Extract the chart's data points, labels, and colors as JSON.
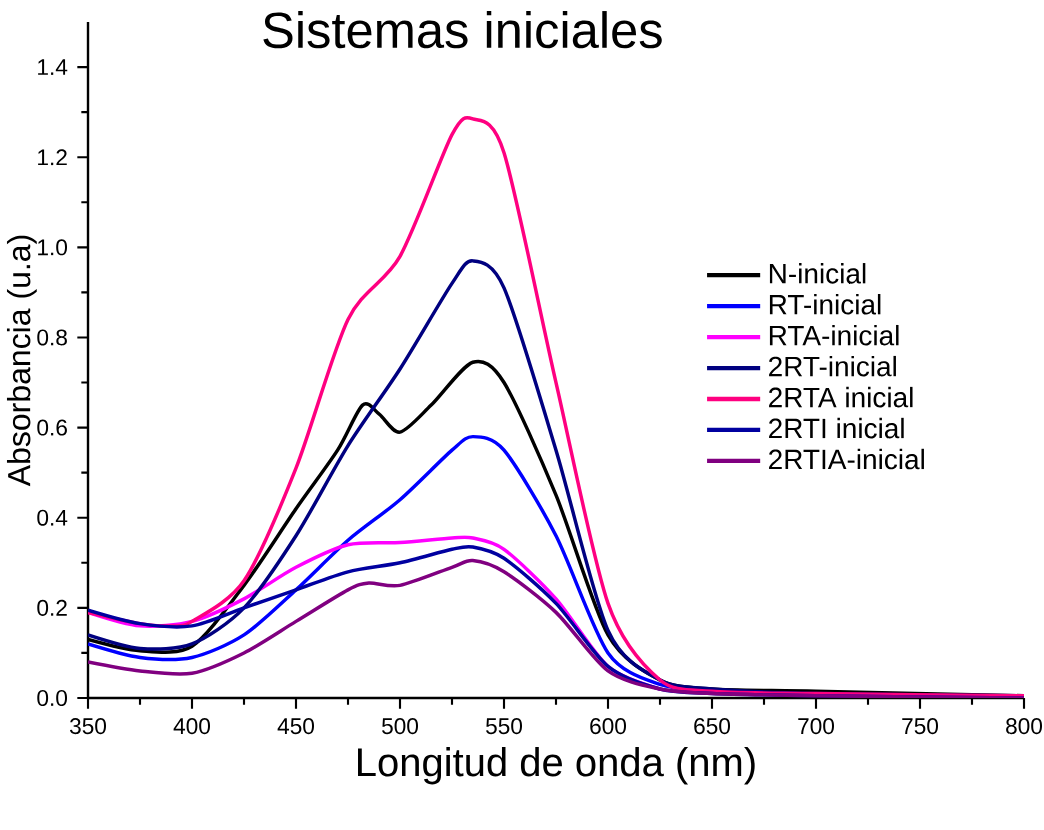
{
  "chart_data": {
    "type": "line",
    "title": "Sistemas iniciales",
    "xlabel": "Longitud de onda (nm)",
    "ylabel": "Absorbancia (u.a)",
    "xlim": [
      350,
      800
    ],
    "ylim": [
      0,
      1.5
    ],
    "xticks": [
      350,
      400,
      450,
      500,
      550,
      600,
      650,
      700,
      750,
      800
    ],
    "yticks": [
      {
        "value": 0,
        "label": "0.0"
      },
      0.2,
      0.4,
      0.6,
      0.8,
      {
        "value": 1,
        "label": "1.0"
      },
      1.2,
      1.4
    ],
    "legend": "right",
    "grid": false,
    "marker": "none",
    "line_style": "solid",
    "series": [
      {
        "name": "N-inicial",
        "color": "#000000",
        "x": [
          350,
          375,
          400,
          425,
          450,
          470,
          482,
          490,
          500,
          515,
          535,
          550,
          575,
          600,
          625,
          650,
          700,
          800
        ],
        "values": [
          0.13,
          0.105,
          0.115,
          0.25,
          0.42,
          0.55,
          0.65,
          0.63,
          0.59,
          0.65,
          0.745,
          0.7,
          0.45,
          0.14,
          0.04,
          0.02,
          0.015,
          0.005
        ]
      },
      {
        "name": "RT-inicial",
        "color": "#0000ff",
        "x": [
          350,
          375,
          400,
          425,
          450,
          475,
          500,
          525,
          535,
          550,
          575,
          600,
          625,
          650
        ],
        "values": [
          0.12,
          0.09,
          0.09,
          0.14,
          0.24,
          0.35,
          0.44,
          0.55,
          0.58,
          0.55,
          0.36,
          0.1,
          0.03,
          0.015
        ]
      },
      {
        "name": "RTA-inicial",
        "color": "#ff00ff",
        "x": [
          350,
          375,
          400,
          425,
          450,
          475,
          500,
          525,
          535,
          550,
          575,
          600,
          625
        ],
        "values": [
          0.19,
          0.16,
          0.17,
          0.22,
          0.29,
          0.34,
          0.345,
          0.355,
          0.355,
          0.33,
          0.22,
          0.07,
          0.02
        ]
      },
      {
        "name": "2RT-inicial",
        "color": "#000080",
        "x": [
          350,
          375,
          400,
          425,
          450,
          475,
          500,
          525,
          535,
          550,
          575,
          600,
          625,
          650,
          700,
          800
        ],
        "values": [
          0.14,
          0.11,
          0.12,
          0.2,
          0.36,
          0.56,
          0.73,
          0.92,
          0.97,
          0.91,
          0.55,
          0.15,
          0.04,
          0.02,
          0.01,
          0.005
        ]
      },
      {
        "name": "2RTA inicial",
        "color": "#ff0080",
        "x": [
          350,
          375,
          390,
          400,
          425,
          450,
          475,
          500,
          525,
          535,
          550,
          575,
          600,
          625,
          650,
          700,
          800
        ],
        "values": [
          0.19,
          0.165,
          0.16,
          0.17,
          0.26,
          0.51,
          0.84,
          0.98,
          1.25,
          1.285,
          1.21,
          0.7,
          0.21,
          0.04,
          0.015,
          0.01,
          0.005
        ]
      },
      {
        "name": "2RTI inicial",
        "color": "#0000a0",
        "x": [
          350,
          375,
          400,
          425,
          450,
          475,
          500,
          525,
          535,
          550,
          575,
          600,
          625,
          650,
          700,
          800
        ],
        "values": [
          0.195,
          0.165,
          0.16,
          0.2,
          0.24,
          0.28,
          0.3,
          0.33,
          0.335,
          0.31,
          0.21,
          0.07,
          0.02,
          0.01,
          0.005,
          0.0
        ]
      },
      {
        "name": "2RTIA-inicial",
        "color": "#800080",
        "x": [
          350,
          375,
          400,
          425,
          450,
          475,
          485,
          500,
          525,
          535,
          550,
          575,
          600,
          625,
          650,
          700,
          800
        ],
        "values": [
          0.08,
          0.06,
          0.055,
          0.1,
          0.17,
          0.24,
          0.255,
          0.25,
          0.29,
          0.305,
          0.28,
          0.19,
          0.06,
          0.02,
          0.01,
          0.005,
          0.0
        ]
      }
    ]
  }
}
